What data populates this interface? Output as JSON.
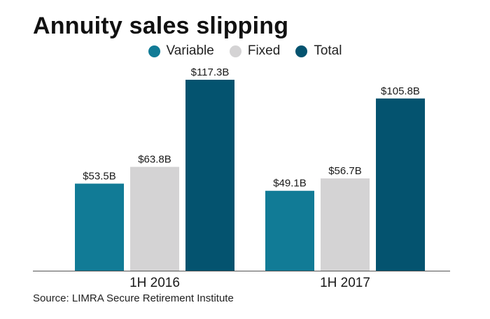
{
  "title": "Annuity sales slipping",
  "source": "Source: LIMRA Secure Retirement Institute",
  "colors": {
    "variable": "#117b96",
    "fixed": "#d4d3d4",
    "total": "#04536f",
    "axis": "#555555"
  },
  "legend": [
    {
      "label": "Variable",
      "color": "#117b96"
    },
    {
      "label": "Fixed",
      "color": "#d4d3d4"
    },
    {
      "label": "Total",
      "color": "#04536f"
    }
  ],
  "chart_data": {
    "type": "bar",
    "title": "Annuity sales slipping",
    "categories": [
      "1H 2016",
      "1H 2017"
    ],
    "series": [
      {
        "name": "Variable",
        "values": [
          53.5,
          49.1
        ],
        "labels": [
          "$53.5B",
          "$49.1B"
        ],
        "color": "#117b96"
      },
      {
        "name": "Fixed",
        "values": [
          63.8,
          56.7
        ],
        "labels": [
          "$63.8B",
          "$56.7B"
        ],
        "color": "#d4d3d4"
      },
      {
        "name": "Total",
        "values": [
          117.3,
          105.8
        ],
        "labels": [
          "$117.3B",
          "$105.8B"
        ],
        "color": "#04536f"
      }
    ],
    "xlabel": "",
    "ylabel": "",
    "ylim": [
      0,
      117.3
    ],
    "grid": false,
    "legend_position": "top-center"
  }
}
